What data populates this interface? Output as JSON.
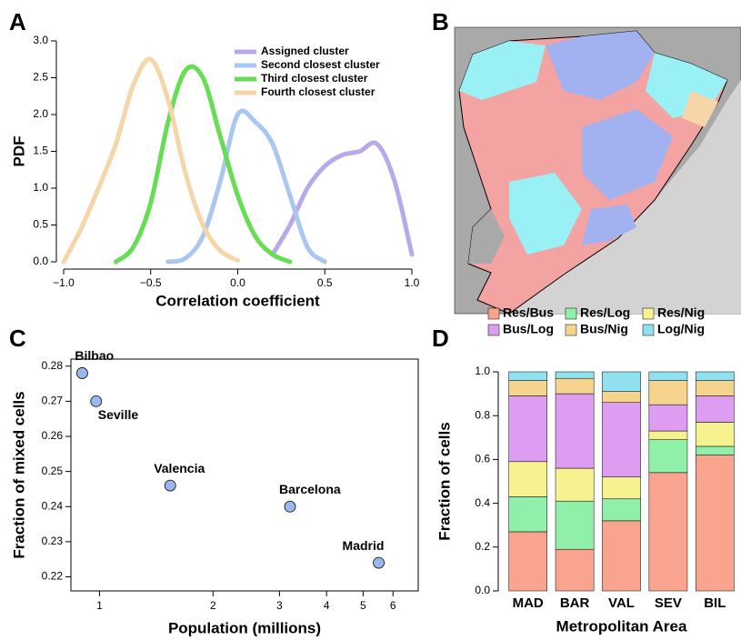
{
  "chart_data": [
    {
      "type": "line",
      "panel": "A",
      "xlabel": "Correlation coefficient",
      "ylabel": "PDF",
      "x": [
        -1.0,
        -0.9,
        -0.8,
        -0.7,
        -0.6,
        -0.5,
        -0.4,
        -0.3,
        -0.2,
        -0.1,
        0.0,
        0.1,
        0.2,
        0.3,
        0.4,
        0.5,
        0.6,
        0.7,
        0.8,
        0.9,
        1.0
      ],
      "series": [
        {
          "name": "Assigned cluster",
          "color": "#b9a9ea",
          "values": [
            null,
            null,
            null,
            null,
            null,
            null,
            null,
            null,
            null,
            null,
            null,
            null,
            0.1,
            0.5,
            1.0,
            1.3,
            1.45,
            1.5,
            1.6,
            1.1,
            0.1
          ]
        },
        {
          "name": "Second closest cluster",
          "color": "#a9c7f0",
          "values": [
            null,
            null,
            null,
            null,
            null,
            null,
            0.0,
            0.05,
            0.35,
            1.1,
            2.0,
            1.9,
            1.6,
            0.9,
            0.2,
            0.0,
            null,
            null,
            null,
            null,
            null
          ]
        },
        {
          "name": "Third closest cluster",
          "color": "#66dd55",
          "values": [
            null,
            null,
            null,
            0.0,
            0.2,
            0.8,
            1.9,
            2.6,
            2.5,
            1.7,
            0.9,
            0.35,
            0.1,
            0.0,
            null,
            null,
            null,
            null,
            null,
            null,
            null
          ]
        },
        {
          "name": "Fourth closest cluster",
          "color": "#f6d5a8",
          "values": [
            0.0,
            0.45,
            1.0,
            1.6,
            2.4,
            2.75,
            2.2,
            1.2,
            0.5,
            0.15,
            0.02,
            null,
            null,
            null,
            null,
            null,
            null,
            null,
            null,
            null,
            null
          ]
        }
      ],
      "xlim": [
        -1,
        1
      ],
      "xticks": [
        {
          "value": -1,
          "label": "−1.0"
        },
        {
          "value": -0.5,
          "label": "−0.5"
        },
        {
          "value": 0,
          "label": "0.0"
        },
        {
          "value": 0.5,
          "label": "0.5"
        },
        {
          "value": 1,
          "label": "1.0"
        }
      ],
      "ylim": [
        0,
        3
      ],
      "yticks": [
        {
          "value": 0,
          "label": "0.0"
        },
        0.5,
        {
          "value": 1,
          "label": "1.0"
        },
        1.5,
        {
          "value": 2,
          "label": "2.0"
        },
        2.5,
        {
          "value": 3,
          "label": "3.0"
        }
      ],
      "legend": "top-right"
    },
    {
      "type": "map",
      "panel": "B"
    },
    {
      "type": "scatter",
      "panel": "C",
      "xlabel": "Population (millions)",
      "ylabel": "Fraction of mixed cells",
      "labels": [
        "Bilbao",
        "Seville",
        "Valencia",
        "Barcelona",
        "Madrid"
      ],
      "x": [
        0.9,
        0.98,
        1.54,
        3.2,
        5.5
      ],
      "values": [
        0.278,
        0.27,
        0.246,
        0.24,
        0.224
      ],
      "color": "#9ab8f0",
      "log_x": true,
      "xlim": [
        0.84,
        7.0
      ],
      "xticks": [
        1,
        2,
        3,
        4,
        5,
        6
      ],
      "ylim": [
        0.216,
        0.282
      ],
      "yticks": [
        0.22,
        0.23,
        0.24,
        0.25,
        0.26,
        0.27,
        0.28
      ]
    },
    {
      "type": "stacked_bar",
      "panel": "D",
      "xlabel": "Metropolitan Area",
      "ylabel": "Fraction of cells",
      "categories": [
        "MAD",
        "BAR",
        "VAL",
        "SEV",
        "BIL"
      ],
      "series": [
        {
          "name": "Res/Bus",
          "color": "#f9a48e",
          "values": [
            0.27,
            0.19,
            0.32,
            0.54,
            0.62
          ]
        },
        {
          "name": "Res/Log",
          "color": "#90f0aa",
          "values": [
            0.16,
            0.22,
            0.1,
            0.15,
            0.04
          ]
        },
        {
          "name": "Res/Nig",
          "color": "#f6f290",
          "values": [
            0.16,
            0.15,
            0.1,
            0.04,
            0.11
          ]
        },
        {
          "name": "Bus/Log",
          "color": "#dd9df0",
          "values": [
            0.3,
            0.34,
            0.34,
            0.12,
            0.12
          ]
        },
        {
          "name": "Bus/Nig",
          "color": "#f7d48e",
          "values": [
            0.07,
            0.07,
            0.05,
            0.11,
            0.07
          ]
        },
        {
          "name": "Log/Nig",
          "color": "#90e0f0",
          "values": [
            0.04,
            0.03,
            0.09,
            0.04,
            0.04
          ]
        }
      ],
      "ylim": [
        0,
        1
      ],
      "yticks": [
        {
          "value": 0,
          "label": "0.0"
        },
        {
          "value": 0.2,
          "label": "0.2"
        },
        {
          "value": 0.4,
          "label": "0.4"
        },
        {
          "value": 0.6,
          "label": "0.6"
        },
        {
          "value": 0.8,
          "label": "0.8"
        },
        {
          "value": 1,
          "label": "1.0"
        }
      ],
      "legend": "top"
    }
  ]
}
